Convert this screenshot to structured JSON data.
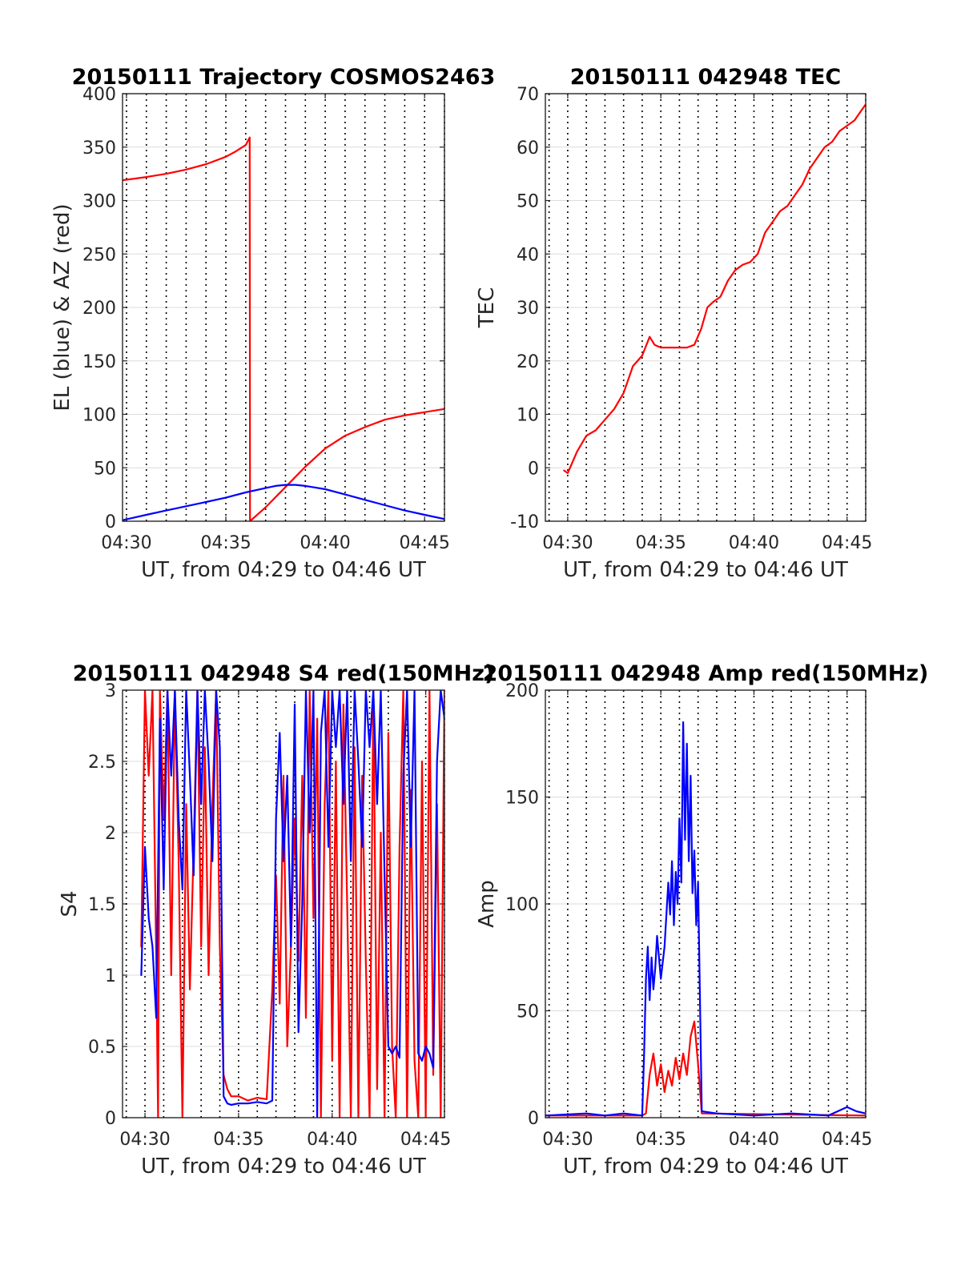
{
  "chart_data": [
    {
      "id": "trajectory",
      "type": "line",
      "title": "20150111 Trajectory COSMOS2463",
      "xlabel": "UT, from 04:29 to 04:46 UT",
      "ylabel": "EL (blue) & AZ (red)",
      "xlim": [
        "04:29:48",
        "04:46:00"
      ],
      "ylim": [
        0,
        400
      ],
      "xticks": [
        "04:30",
        "04:35",
        "04:40",
        "04:45"
      ],
      "yticks": [
        "0",
        "50",
        "100",
        "150",
        "200",
        "250",
        "300",
        "350",
        "400"
      ],
      "grid": true,
      "series": [
        {
          "color": "#ff0000",
          "x": [
            "04:29:48",
            "04:31:00",
            "04:32:00",
            "04:33:00",
            "04:34:00",
            "04:35:00",
            "04:35:30",
            "04:36:00",
            "04:36:12",
            "04:36:13",
            "04:37:00",
            "04:38:00",
            "04:39:00",
            "04:40:00",
            "04:41:00",
            "04:42:00",
            "04:43:00",
            "04:44:00",
            "04:45:00",
            "04:46:00"
          ],
          "y": [
            319,
            322,
            325,
            329,
            334,
            341,
            346,
            352,
            359,
            0,
            13,
            32,
            51,
            68,
            80,
            88,
            95,
            99,
            102,
            105
          ]
        },
        {
          "color": "#0000ff",
          "x": [
            "04:29:48",
            "04:31:00",
            "04:32:00",
            "04:33:00",
            "04:34:00",
            "04:35:00",
            "04:36:00",
            "04:37:00",
            "04:37:30",
            "04:38:00",
            "04:38:30",
            "04:39:00",
            "04:40:00",
            "04:41:00",
            "04:42:00",
            "04:43:00",
            "04:44:00",
            "04:45:00",
            "04:46:00"
          ],
          "y": [
            1,
            6,
            10,
            14,
            18,
            22,
            27,
            31,
            33,
            34,
            34,
            33,
            30,
            25,
            20,
            15,
            10,
            6,
            2
          ]
        }
      ]
    },
    {
      "id": "tec",
      "type": "line",
      "title": "20150111 042948 TEC",
      "xlabel": "UT, from 04:29 to 04:46 UT",
      "ylabel": "TEC",
      "xlim": [
        "04:28:48",
        "04:46:00"
      ],
      "ylim": [
        -10,
        70
      ],
      "xticks": [
        "04:30",
        "04:35",
        "04:40",
        "04:45"
      ],
      "yticks": [
        "-10",
        "0",
        "10",
        "20",
        "30",
        "40",
        "50",
        "60",
        "70"
      ],
      "grid": true,
      "series": [
        {
          "color": "#ff0000",
          "x": [
            "04:29:48",
            "04:30:00",
            "04:30:30",
            "04:31:00",
            "04:31:30",
            "04:32:00",
            "04:32:30",
            "04:33:00",
            "04:33:30",
            "04:34:00",
            "04:34:24",
            "04:34:40",
            "04:35:00",
            "04:35:30",
            "04:36:00",
            "04:36:24",
            "04:36:48",
            "04:37:10",
            "04:37:30",
            "04:37:48",
            "04:38:12",
            "04:38:36",
            "04:39:00",
            "04:39:24",
            "04:39:48",
            "04:40:12",
            "04:40:36",
            "04:41:00",
            "04:41:24",
            "04:41:48",
            "04:42:12",
            "04:42:36",
            "04:43:00",
            "04:43:24",
            "04:43:48",
            "04:44:12",
            "04:44:36",
            "04:45:00",
            "04:45:24",
            "04:45:48",
            "04:46:00"
          ],
          "y": [
            -0.5,
            -1,
            3,
            6,
            7,
            9,
            11,
            14,
            19,
            21,
            24.5,
            23,
            22.5,
            22.5,
            22.5,
            22.5,
            23,
            26,
            30,
            31,
            32,
            35,
            37,
            38,
            38.5,
            40,
            44,
            46,
            48,
            49,
            51,
            53,
            56,
            58,
            60,
            61,
            63,
            64,
            65,
            67,
            68
          ]
        }
      ]
    },
    {
      "id": "s4",
      "type": "line",
      "title": "20150111 042948 S4 red(150MHz)",
      "xlabel": "UT, from 04:29 to 04:46 UT",
      "ylabel": "S4",
      "xlim": [
        "04:28:48",
        "04:46:00"
      ],
      "ylim": [
        0,
        3
      ],
      "xticks": [
        "04:30",
        "04:35",
        "04:40",
        "04:45"
      ],
      "yticks": [
        "0",
        "0.5",
        "1",
        "1.5",
        "2",
        "2.5",
        "3"
      ],
      "grid": true,
      "series": [
        {
          "color": "#ff0000",
          "x": [
            "04:29:48",
            "04:30:00",
            "04:30:12",
            "04:30:24",
            "04:30:36",
            "04:30:42",
            "04:30:48",
            "04:31:00",
            "04:31:12",
            "04:31:24",
            "04:31:36",
            "04:31:48",
            "04:32:00",
            "04:32:12",
            "04:32:24",
            "04:32:36",
            "04:32:48",
            "04:33:00",
            "04:33:12",
            "04:33:24",
            "04:33:36",
            "04:33:48",
            "04:34:00",
            "04:34:12",
            "04:34:24",
            "04:34:36",
            "04:35:00",
            "04:35:30",
            "04:36:00",
            "04:36:30",
            "04:36:48",
            "04:37:00",
            "04:37:12",
            "04:37:24",
            "04:37:36",
            "04:37:48",
            "04:38:00",
            "04:38:12",
            "04:38:24",
            "04:38:36",
            "04:38:48",
            "04:39:00",
            "04:39:12",
            "04:39:24",
            "04:39:36",
            "04:39:48",
            "04:40:00",
            "04:40:12",
            "04:40:24",
            "04:40:36",
            "04:40:48",
            "04:41:00",
            "04:41:12",
            "04:41:24",
            "04:41:36",
            "04:41:48",
            "04:42:00",
            "04:42:12",
            "04:42:24",
            "04:42:36",
            "04:42:48",
            "04:43:00",
            "04:43:12",
            "04:43:24",
            "04:43:36",
            "04:43:48",
            "04:44:00",
            "04:44:12",
            "04:44:24",
            "04:44:36",
            "04:44:48",
            "04:45:00",
            "04:45:12",
            "04:45:24",
            "04:45:36",
            "04:45:48",
            "04:46:00"
          ],
          "y": [
            1.2,
            3,
            2.4,
            3,
            1.1,
            0,
            3,
            2.1,
            3,
            1.0,
            3,
            1.8,
            0,
            2.2,
            0.9,
            1.9,
            3,
            1.2,
            2.6,
            1.0,
            2.2,
            3,
            1.2,
            0.3,
            0.2,
            0.15,
            0.15,
            0.12,
            0.14,
            0.13,
            0.9,
            1.7,
            0.8,
            2.4,
            0.5,
            1.2,
            2.1,
            1.1,
            2.4,
            0.7,
            3,
            1.4,
            2.8,
            0,
            2.2,
            3,
            0.4,
            2.5,
            0,
            2.9,
            1.5,
            0,
            2.6,
            0,
            2.4,
            1.1,
            0,
            3,
            0.2,
            2.0,
            0,
            2.7,
            0.5,
            0,
            1.9,
            3,
            0,
            2.3,
            0.4,
            0,
            2.5,
            0,
            3,
            0.3,
            2.2,
            0,
            3
          ]
        },
        {
          "color": "#0000ff",
          "x": [
            "04:29:48",
            "04:30:00",
            "04:30:12",
            "04:30:24",
            "04:30:36",
            "04:30:48",
            "04:31:00",
            "04:31:12",
            "04:31:24",
            "04:31:36",
            "04:31:48",
            "04:32:00",
            "04:32:12",
            "04:32:24",
            "04:32:36",
            "04:32:48",
            "04:33:00",
            "04:33:12",
            "04:33:24",
            "04:33:36",
            "04:33:48",
            "04:34:00",
            "04:34:12",
            "04:34:24",
            "04:34:36",
            "04:35:00",
            "04:35:30",
            "04:36:00",
            "04:36:30",
            "04:36:48",
            "04:37:00",
            "04:37:12",
            "04:37:24",
            "04:37:36",
            "04:37:48",
            "04:38:00",
            "04:38:12",
            "04:38:24",
            "04:38:36",
            "04:38:48",
            "04:39:00",
            "04:39:12",
            "04:39:24",
            "04:39:36",
            "04:39:48",
            "04:40:00",
            "04:40:12",
            "04:40:24",
            "04:40:36",
            "04:40:48",
            "04:41:00",
            "04:41:12",
            "04:41:24",
            "04:41:36",
            "04:41:48",
            "04:42:00",
            "04:42:12",
            "04:42:24",
            "04:42:36",
            "04:42:48",
            "04:43:00",
            "04:43:12",
            "04:43:24",
            "04:43:36",
            "04:43:48",
            "04:44:00",
            "04:44:12",
            "04:44:24",
            "04:44:36",
            "04:44:48",
            "04:45:00",
            "04:45:12",
            "04:45:24",
            "04:45:36",
            "04:45:48",
            "04:46:00"
          ],
          "y": [
            1.0,
            1.9,
            1.4,
            1.2,
            0.7,
            2.8,
            1.6,
            3,
            2.4,
            3,
            2.1,
            1.6,
            3,
            2.4,
            1.7,
            3,
            2.2,
            3,
            2.5,
            1.8,
            3,
            2.6,
            0.15,
            0.1,
            0.09,
            0.1,
            0.1,
            0.11,
            0.1,
            0.12,
            2.1,
            2.7,
            1.8,
            2.4,
            1.2,
            2.9,
            0.6,
            1.5,
            3,
            2.0,
            3,
            0,
            2.7,
            3,
            1.9,
            3,
            2.6,
            3,
            2.2,
            3,
            1.8,
            3,
            2.5,
            1.9,
            3,
            2.6,
            3,
            2.2,
            3,
            1.7,
            0.5,
            0.45,
            0.5,
            0.42,
            2.4,
            3,
            1.9,
            3,
            0.45,
            0.4,
            0.5,
            0.45,
            0.35,
            2.5,
            3,
            2.8
          ]
        }
      ]
    },
    {
      "id": "amp",
      "type": "line",
      "title": "20150111 042948 Amp red(150MHz)",
      "xlabel": "UT, from 04:29 to 04:46 UT",
      "ylabel": "Amp",
      "xlim": [
        "04:28:48",
        "04:46:00"
      ],
      "ylim": [
        0,
        200
      ],
      "xticks": [
        "04:30",
        "04:35",
        "04:40",
        "04:45"
      ],
      "yticks": [
        "0",
        "50",
        "100",
        "150",
        "200"
      ],
      "grid": true,
      "series": [
        {
          "color": "#ff0000",
          "x": [
            "04:28:48",
            "04:34:00",
            "04:34:12",
            "04:34:24",
            "04:34:36",
            "04:34:48",
            "04:35:00",
            "04:35:12",
            "04:35:24",
            "04:35:36",
            "04:35:48",
            "04:36:00",
            "04:36:12",
            "04:36:24",
            "04:36:36",
            "04:36:48",
            "04:37:00",
            "04:37:12",
            "04:46:00"
          ],
          "y": [
            1,
            1,
            2,
            20,
            30,
            15,
            25,
            12,
            22,
            15,
            28,
            18,
            30,
            20,
            38,
            45,
            25,
            2,
            1
          ]
        },
        {
          "color": "#0000ff",
          "x": [
            "04:28:48",
            "04:31:00",
            "04:32:00",
            "04:33:00",
            "04:34:00",
            "04:34:06",
            "04:34:12",
            "04:34:18",
            "04:34:24",
            "04:34:30",
            "04:34:36",
            "04:34:42",
            "04:34:48",
            "04:35:00",
            "04:35:12",
            "04:35:24",
            "04:35:30",
            "04:35:36",
            "04:35:42",
            "04:35:48",
            "04:35:54",
            "04:36:00",
            "04:36:06",
            "04:36:12",
            "04:36:18",
            "04:36:24",
            "04:36:30",
            "04:36:36",
            "04:36:42",
            "04:36:48",
            "04:36:54",
            "04:37:00",
            "04:37:12",
            "04:38:00",
            "04:40:00",
            "04:42:00",
            "04:44:00",
            "04:44:30",
            "04:45:00",
            "04:45:30",
            "04:46:00"
          ],
          "y": [
            1,
            2,
            1,
            2,
            1,
            30,
            65,
            80,
            55,
            75,
            60,
            70,
            85,
            65,
            80,
            110,
            95,
            120,
            90,
            115,
            100,
            140,
            110,
            185,
            130,
            175,
            120,
            160,
            105,
            125,
            90,
            110,
            3,
            2,
            1,
            2,
            1,
            3,
            5,
            3,
            2
          ]
        }
      ]
    }
  ]
}
